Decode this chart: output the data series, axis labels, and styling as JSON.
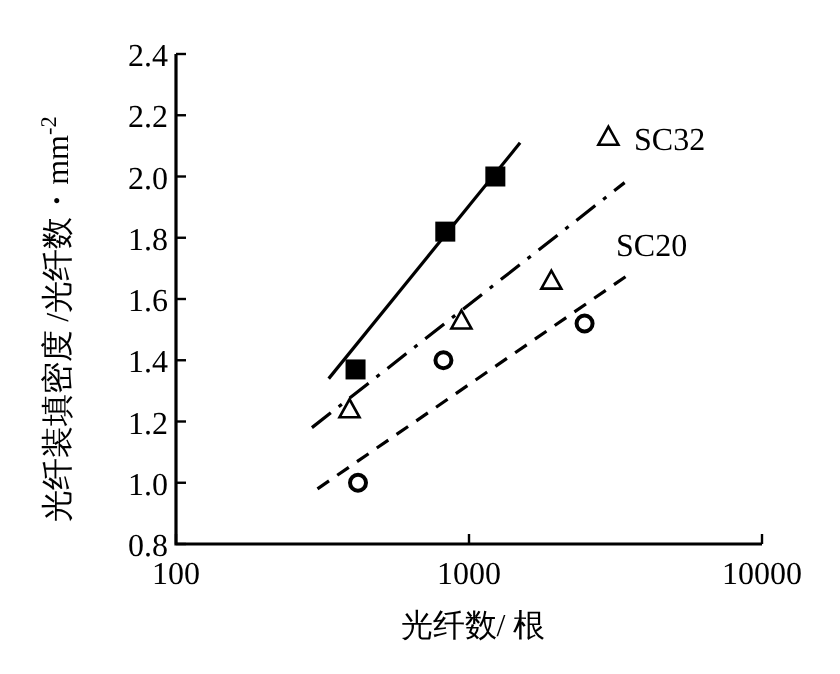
{
  "chart_data": {
    "type": "scatter",
    "xlabel": "光纤数/ 根",
    "ylabel": "光纤装填密度 /光纤数・mm$^{-2}$",
    "log": "x",
    "xlim": [
      100,
      10000
    ],
    "ylim": [
      0.8,
      2.4
    ],
    "xticks": [
      100,
      1000,
      10000
    ],
    "yticks": [
      0.8,
      {
        "value": 1,
        "label": "1.0"
      },
      1.2,
      1.4,
      1.6,
      1.8,
      {
        "value": 2,
        "label": "2.0"
      },
      2.2,
      2.4
    ],
    "grid": false,
    "series": [
      {
        "marker": "square",
        "color": "#000000",
        "x": [
          410,
          830,
          1230
        ],
        "values": [
          1.37,
          1.82,
          2.0
        ]
      },
      {
        "marker": "triangle",
        "color": "#000000",
        "x": [
          391,
          942,
          1910,
          2990
        ],
        "values": [
          1.24,
          1.53,
          1.66,
          2.13
        ]
      },
      {
        "marker": "circle",
        "color": "#000000",
        "x": [
          418,
          818,
          2480
        ],
        "values": [
          1.0,
          1.4,
          1.52
        ]
      },
      {
        "type": "line",
        "line_style": "solid",
        "color": "#000000",
        "x": [
          332,
          1494
        ],
        "values": [
          1.34,
          2.11
        ]
      },
      {
        "type": "line",
        "line_style": "dashdot",
        "color": "#000000",
        "x": [
          291,
          3397
        ],
        "values": [
          1.18,
          1.98
        ]
      },
      {
        "type": "line",
        "line_style": "dashed",
        "color": "#000000",
        "x": [
          304,
          3510
        ],
        "values": [
          0.98,
          1.68
        ]
      }
    ],
    "annotations": [
      "SC32",
      "SC20"
    ]
  }
}
